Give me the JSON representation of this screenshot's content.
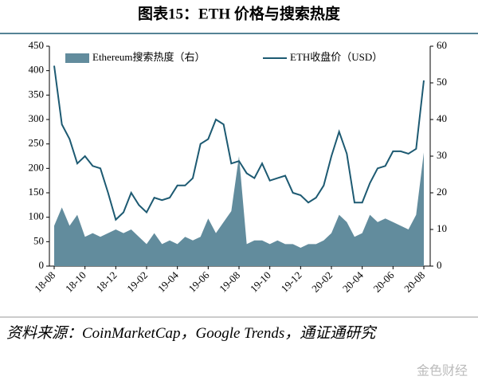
{
  "chart_data": {
    "type": "line",
    "title": "图表15：ETH 价格与搜索热度",
    "categories": [
      "18-08",
      null,
      null,
      null,
      "18-10",
      null,
      null,
      null,
      "18-12",
      null,
      null,
      null,
      "19-02",
      null,
      null,
      null,
      "19-04",
      null,
      null,
      null,
      "19-06",
      null,
      null,
      null,
      "19-08",
      null,
      null,
      null,
      "19-10",
      null,
      null,
      null,
      "19-12",
      null,
      null,
      null,
      "20-02",
      null,
      null,
      null,
      "20-04",
      null,
      null,
      null,
      "20-06",
      null,
      null,
      null,
      "20-08"
    ],
    "series": [
      {
        "name": "Ethereum搜索热度（右）",
        "color": "#628c9d",
        "type": "area",
        "axis": "y2",
        "values": [
          11,
          16,
          11,
          14,
          8,
          9,
          8,
          9,
          10,
          9,
          10,
          8,
          6,
          9,
          6,
          7,
          6,
          8,
          7,
          8,
          13,
          9,
          12,
          15,
          30,
          6,
          7,
          7,
          6,
          7,
          6,
          6,
          5,
          6,
          6,
          7,
          9,
          14,
          12,
          8,
          9,
          14,
          12,
          13,
          12,
          11,
          10,
          14,
          31
        ]
      },
      {
        "name": "ETH收盘价（USD）",
        "color": "#1d5a72",
        "values": [
          410,
          290,
          260,
          210,
          225,
          205,
          200,
          150,
          95,
          110,
          150,
          125,
          110,
          140,
          135,
          140,
          165,
          165,
          180,
          250,
          260,
          300,
          290,
          210,
          215,
          190,
          180,
          210,
          175,
          180,
          185,
          150,
          145,
          130,
          140,
          165,
          225,
          275,
          230,
          130,
          130,
          170,
          200,
          205,
          235,
          235,
          230,
          240,
          380
        ]
      }
    ],
    "ylim": [
      0,
      450
    ],
    "yticks": [
      0,
      50,
      100,
      150,
      200,
      250,
      300,
      350,
      400,
      450
    ],
    "y2lim": [
      0,
      60
    ],
    "y2ticks": [
      0,
      10,
      20,
      30,
      40,
      50,
      60
    ],
    "legend": "top"
  },
  "source": "资料来源：CoinMarketCap，Google Trends，通证通研究",
  "watermark": "金色财经"
}
